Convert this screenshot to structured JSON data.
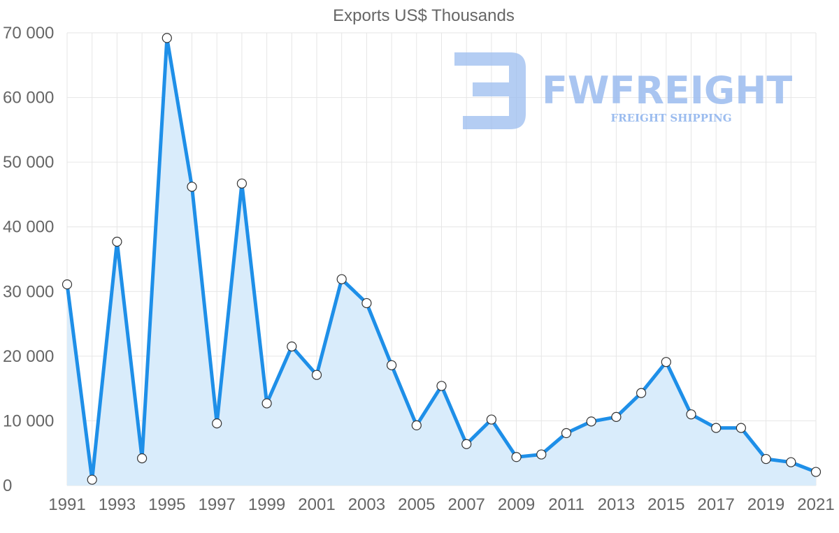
{
  "chart_data": {
    "type": "line",
    "title": "Exports US$ Thousands",
    "x": [
      1991,
      1992,
      1993,
      1994,
      1995,
      1996,
      1997,
      1998,
      1999,
      2000,
      2001,
      2002,
      2003,
      2004,
      2005,
      2006,
      2007,
      2008,
      2009,
      2010,
      2011,
      2012,
      2013,
      2014,
      2015,
      2016,
      2017,
      2018,
      2019,
      2020,
      2021
    ],
    "x_tick_labels": [
      "1991",
      "1993",
      "1995",
      "1997",
      "1999",
      "2001",
      "2003",
      "2005",
      "2007",
      "2009",
      "2011",
      "2013",
      "2015",
      "2017",
      "2019",
      "2021"
    ],
    "series": [
      {
        "name": "Exports US$ Thousands",
        "values": [
          31100,
          900,
          37700,
          4200,
          69200,
          46200,
          9600,
          46700,
          12700,
          21500,
          17100,
          31900,
          28200,
          18600,
          9300,
          15400,
          6400,
          10200,
          4400,
          4800,
          8100,
          9900,
          10600,
          14300,
          19100,
          11000,
          8900,
          8900,
          4100,
          3600,
          2100
        ]
      }
    ],
    "ylim": [
      0,
      70000
    ],
    "y_ticks": [
      0,
      10000,
      20000,
      30000,
      40000,
      50000,
      60000,
      70000
    ],
    "y_tick_labels": [
      "0",
      "10 000",
      "20 000",
      "30 000",
      "40 000",
      "50 000",
      "60 000",
      "70 000"
    ],
    "xlabel": "",
    "ylabel": "",
    "grid": true,
    "colors": {
      "line": "#1e8fe8",
      "fill": "#d9ecfb",
      "point_fill": "#ffffff",
      "point_stroke": "#333333",
      "grid": "#e6e6e6",
      "text": "#666666"
    }
  },
  "watermark": {
    "brand": "FWFREIGHT",
    "tagline": "FREIGHT SHIPPING",
    "logo_icon": "fw-logo-icon",
    "color": "#9bbcef"
  }
}
